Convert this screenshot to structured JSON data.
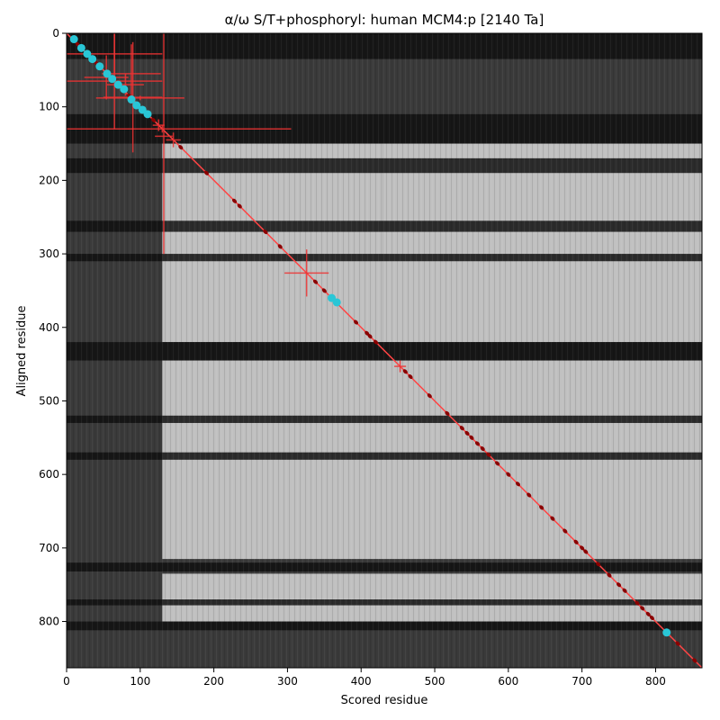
{
  "chart_data": {
    "type": "heatmap",
    "title": "α/ω S/T+phosphoryl: human MCM4:p [2140 Ta]",
    "xlabel": "Scored residue",
    "ylabel": "Aligned residue",
    "xlim": [
      0,
      863
    ],
    "ylim": [
      863,
      0
    ],
    "xticks": [
      0,
      100,
      200,
      300,
      400,
      500,
      600,
      700,
      800
    ],
    "yticks": [
      0,
      100,
      200,
      300,
      400,
      500,
      600,
      700,
      800
    ],
    "colormap": "grayscale",
    "heatmap_description": "Residue-vs-residue similarity map in grayscale; bright block spanning roughly residues 140–430 and 450–863 with dark horizontal bands near 110–150, 175–190, 260–270, 420–440, 720–730, 800–810.",
    "dark_bands": [
      [
        0,
        35
      ],
      [
        110,
        150
      ],
      [
        170,
        190
      ],
      [
        255,
        270
      ],
      [
        300,
        310
      ],
      [
        420,
        445
      ],
      [
        520,
        530
      ],
      [
        570,
        580
      ],
      [
        720,
        732
      ],
      [
        770,
        778
      ],
      [
        800,
        812
      ]
    ],
    "bright_regions": [
      {
        "x": [
          130,
          430
        ],
        "y": [
          150,
          420
        ]
      },
      {
        "x": [
          130,
          863
        ],
        "y": [
          445,
          715
        ]
      },
      {
        "x": [
          130,
          863
        ],
        "y": [
          735,
          800
        ]
      },
      {
        "x": [
          430,
          863
        ],
        "y": [
          150,
          420
        ]
      }
    ],
    "diagonal_line": {
      "from": [
        0,
        0
      ],
      "to": [
        863,
        863
      ],
      "color": "#ff4444"
    },
    "error_crosses": [
      {
        "x": 65,
        "y": 65,
        "xerr": 65,
        "yerr": 65
      },
      {
        "x": 130,
        "y": 130,
        "xerr": 175,
        "yerr": 5
      },
      {
        "x": 65,
        "y": 28,
        "xerr": 65,
        "yerr": 28
      },
      {
        "x": 54,
        "y": 60,
        "xerr": 30,
        "yerr": 30
      },
      {
        "x": 80,
        "y": 70,
        "xerr": 25,
        "yerr": 15
      },
      {
        "x": 88,
        "y": 55,
        "xerr": 40,
        "yerr": 40
      },
      {
        "x": 90,
        "y": 87,
        "xerr": 40,
        "yerr": 75
      },
      {
        "x": 100,
        "y": 88,
        "xerr": 60,
        "yerr": 3
      },
      {
        "x": 132,
        "y": 140,
        "xerr": 12,
        "yerr": 160
      },
      {
        "x": 125,
        "y": 125,
        "xerr": 8,
        "yerr": 8
      },
      {
        "x": 145,
        "y": 145,
        "xerr": 10,
        "yerr": 10
      },
      {
        "x": 326,
        "y": 326,
        "xerr": 30,
        "yerr": 32
      },
      {
        "x": 453,
        "y": 453,
        "xerr": 8,
        "yerr": 8
      }
    ],
    "highlighted_points": {
      "color": "#29c6d6",
      "points": [
        [
          10,
          8
        ],
        [
          20,
          20
        ],
        [
          28,
          28
        ],
        [
          35,
          35
        ],
        [
          45,
          45
        ],
        [
          55,
          55
        ],
        [
          62,
          62
        ],
        [
          70,
          70
        ],
        [
          78,
          76
        ],
        [
          88,
          90
        ],
        [
          95,
          98
        ],
        [
          103,
          104
        ],
        [
          110,
          110
        ],
        [
          360,
          360
        ],
        [
          367,
          366
        ],
        [
          815,
          815
        ]
      ]
    },
    "residue_dots": {
      "color": "#8b0000",
      "points": [
        [
          15,
          15
        ],
        [
          40,
          40
        ],
        [
          60,
          60
        ],
        [
          85,
          85
        ],
        [
          118,
          118
        ],
        [
          155,
          155
        ],
        [
          190,
          190
        ],
        [
          228,
          228
        ],
        [
          235,
          235
        ],
        [
          270,
          270
        ],
        [
          290,
          290
        ],
        [
          338,
          338
        ],
        [
          350,
          350
        ],
        [
          393,
          393
        ],
        [
          408,
          408
        ],
        [
          412,
          412
        ],
        [
          420,
          420
        ],
        [
          460,
          460
        ],
        [
          467,
          467
        ],
        [
          493,
          493
        ],
        [
          517,
          517
        ],
        [
          537,
          537
        ],
        [
          544,
          544
        ],
        [
          550,
          550
        ],
        [
          558,
          558
        ],
        [
          565,
          565
        ],
        [
          573,
          573
        ],
        [
          585,
          585
        ],
        [
          600,
          600
        ],
        [
          613,
          613
        ],
        [
          628,
          628
        ],
        [
          645,
          645
        ],
        [
          660,
          660
        ],
        [
          677,
          677
        ],
        [
          692,
          692
        ],
        [
          700,
          700
        ],
        [
          705,
          705
        ],
        [
          722,
          722
        ],
        [
          737,
          737
        ],
        [
          750,
          750
        ],
        [
          758,
          758
        ],
        [
          775,
          775
        ],
        [
          782,
          782
        ],
        [
          790,
          790
        ],
        [
          795,
          795
        ],
        [
          830,
          830
        ],
        [
          853,
          853
        ]
      ]
    }
  }
}
